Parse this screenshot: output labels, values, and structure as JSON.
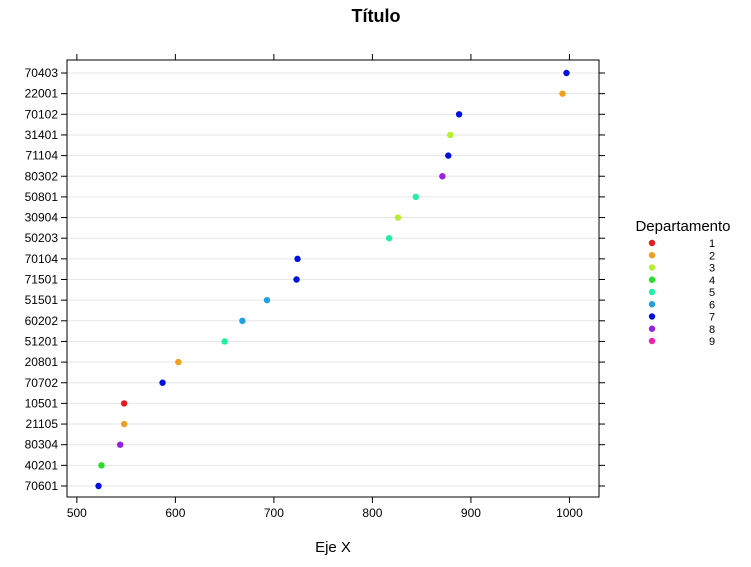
{
  "chart_data": {
    "type": "scatter",
    "title": "Título",
    "xlabel": "Eje X",
    "ylabel": "",
    "xlim": [
      490,
      1030
    ],
    "xticks": [
      500,
      600,
      700,
      800,
      900,
      1000
    ],
    "grid": "horizontal",
    "legend": {
      "title": "Departamento",
      "placement": "right",
      "entries": [
        {
          "label": "1",
          "color": "#e41a1c"
        },
        {
          "label": "2",
          "color": "#f0a020"
        },
        {
          "label": "3",
          "color": "#b4f030"
        },
        {
          "label": "4",
          "color": "#22e022"
        },
        {
          "label": "5",
          "color": "#20f0a0"
        },
        {
          "label": "6",
          "color": "#20a0e0"
        },
        {
          "label": "7",
          "color": "#0010e0"
        },
        {
          "label": "8",
          "color": "#9820e0"
        },
        {
          "label": "9",
          "color": "#f020b0"
        }
      ]
    },
    "points": [
      {
        "label": "70403",
        "x": 997,
        "group": "7"
      },
      {
        "label": "22001",
        "x": 993,
        "group": "2"
      },
      {
        "label": "70102",
        "x": 888,
        "group": "7"
      },
      {
        "label": "31401",
        "x": 879,
        "group": "3"
      },
      {
        "label": "71104",
        "x": 877,
        "group": "7"
      },
      {
        "label": "80302",
        "x": 871,
        "group": "8"
      },
      {
        "label": "50801",
        "x": 844,
        "group": "5"
      },
      {
        "label": "30904",
        "x": 826,
        "group": "3"
      },
      {
        "label": "50203",
        "x": 817,
        "group": "5"
      },
      {
        "label": "70104",
        "x": 724,
        "group": "7"
      },
      {
        "label": "71501",
        "x": 723,
        "group": "7"
      },
      {
        "label": "51501",
        "x": 693,
        "group": "6"
      },
      {
        "label": "60202",
        "x": 668,
        "group": "6"
      },
      {
        "label": "51201",
        "x": 650,
        "group": "5"
      },
      {
        "label": "20801",
        "x": 603,
        "group": "2"
      },
      {
        "label": "70702",
        "x": 587,
        "group": "7"
      },
      {
        "label": "10501",
        "x": 548,
        "group": "1"
      },
      {
        "label": "21105",
        "x": 548,
        "group": "2"
      },
      {
        "label": "80304",
        "x": 544,
        "group": "8"
      },
      {
        "label": "40201",
        "x": 525,
        "group": "4"
      },
      {
        "label": "70601",
        "x": 522,
        "group": "7"
      }
    ]
  }
}
